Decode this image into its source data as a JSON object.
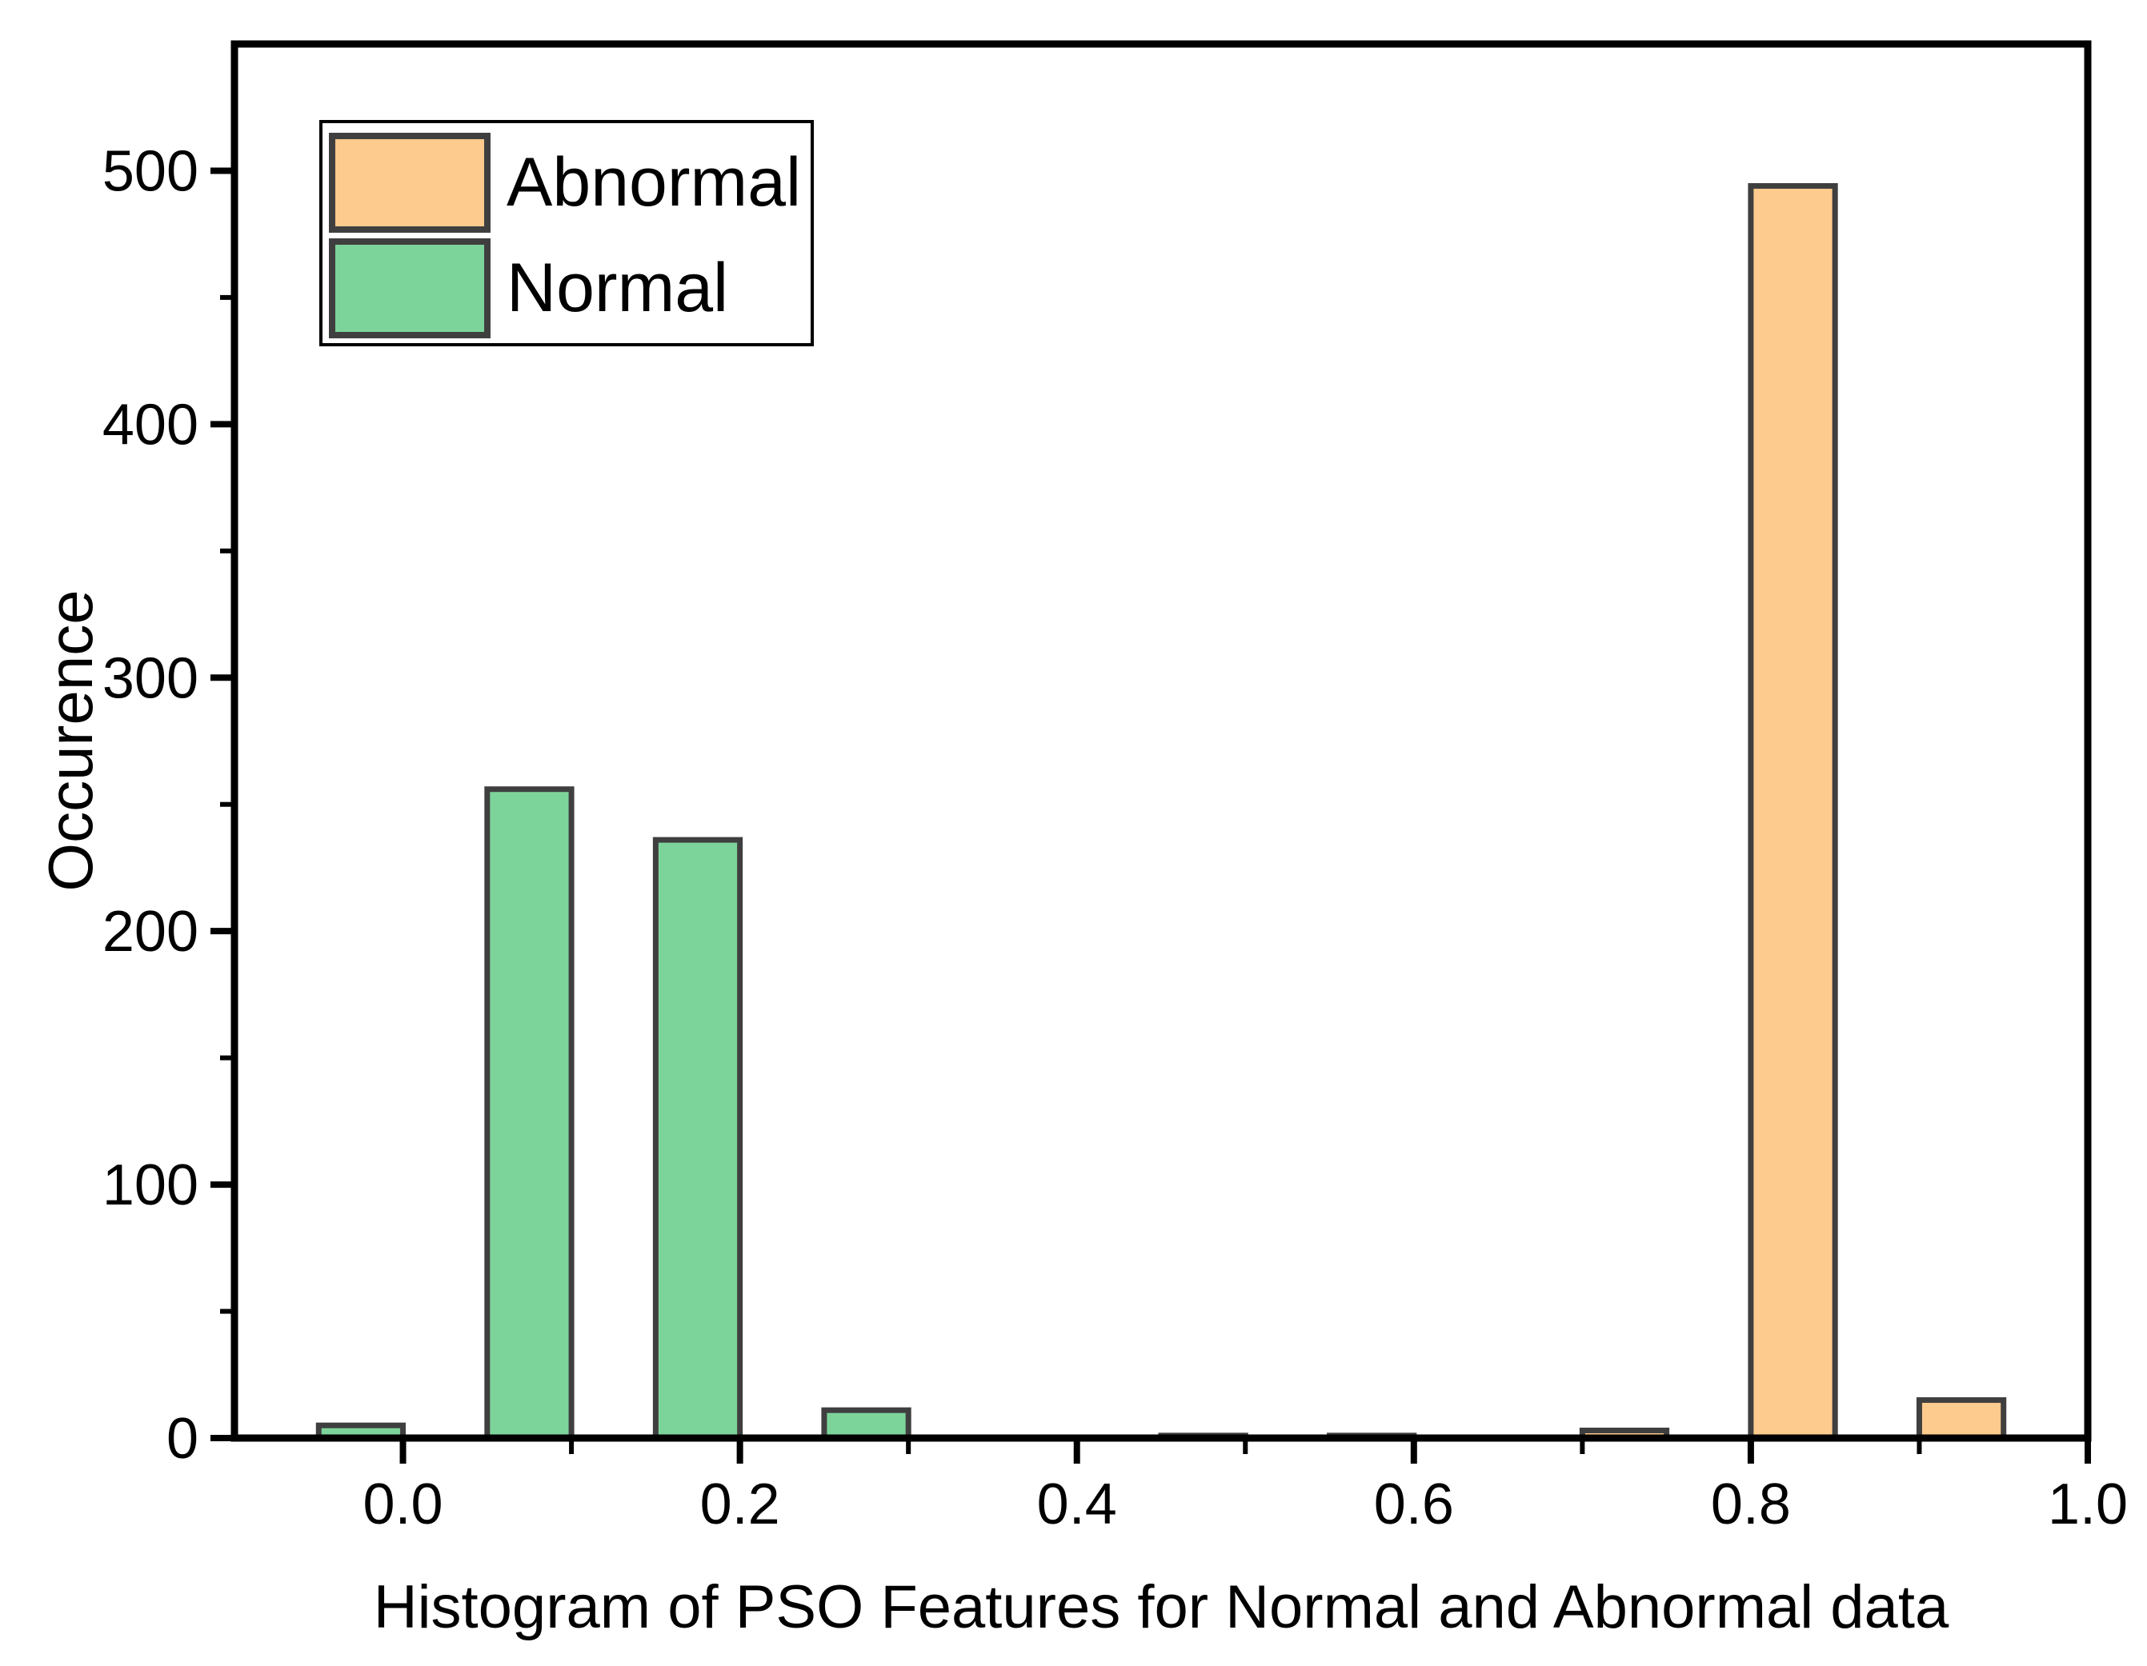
{
  "chart_data": {
    "type": "bar",
    "subtype": "histogram",
    "title": "Histogram of PSO Features for Normal and Abnormal data",
    "xlabel": "Histogram of PSO Features for Normal and Abnormal data",
    "ylabel": "Occurence",
    "xlim": [
      -0.1,
      1.0
    ],
    "ylim": [
      0,
      550
    ],
    "grid": false,
    "x_major_ticks": [
      0.0,
      0.2,
      0.4,
      0.6,
      0.8,
      1.0
    ],
    "x_major_tick_labels": [
      "0.0",
      "0.2",
      "0.4",
      "0.6",
      "0.8",
      "1.0"
    ],
    "x_minor_ticks": [
      0.1,
      0.3,
      0.5,
      0.7,
      0.9
    ],
    "y_major_ticks": [
      0,
      100,
      200,
      300,
      400,
      500
    ],
    "y_major_tick_labels": [
      "0",
      "100",
      "200",
      "300",
      "400",
      "500"
    ],
    "y_minor_ticks": [
      50,
      150,
      250,
      350,
      450
    ],
    "legend": {
      "position": "top-left",
      "entries": [
        {
          "label": "Abnormal",
          "color": "#FCCB8D"
        },
        {
          "label": "Normal",
          "color": "#7DD49B"
        }
      ]
    },
    "series": [
      {
        "name": "Normal",
        "fill_color": "#7DD49B",
        "bars": [
          {
            "x0": -0.05,
            "x1": 0.0,
            "count": 5
          },
          {
            "x0": 0.05,
            "x1": 0.1,
            "count": 256
          },
          {
            "x0": 0.15,
            "x1": 0.2,
            "count": 236
          },
          {
            "x0": 0.25,
            "x1": 0.3,
            "count": 11
          },
          {
            "x0": 0.45,
            "x1": 0.5,
            "count": 1
          }
        ]
      },
      {
        "name": "Abnormal",
        "fill_color": "#FCCB8D",
        "bars": [
          {
            "x0": 0.55,
            "x1": 0.6,
            "count": 1
          },
          {
            "x0": 0.7,
            "x1": 0.75,
            "count": 3
          },
          {
            "x0": 0.8,
            "x1": 0.85,
            "count": 494
          },
          {
            "x0": 0.9,
            "x1": 0.95,
            "count": 15
          }
        ]
      }
    ],
    "bar_border_color": "#3F3F3F",
    "axis_color": "#000000",
    "background_color": "#FFFFFF"
  }
}
